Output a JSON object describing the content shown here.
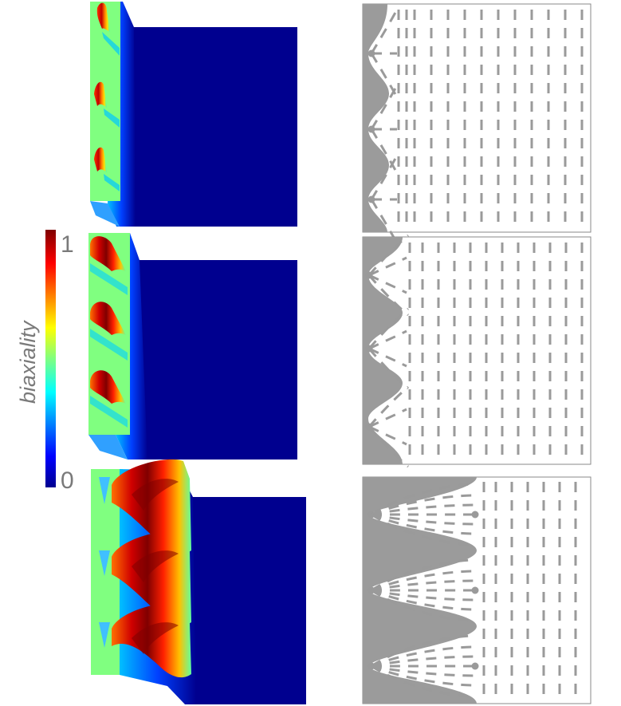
{
  "colorbar": {
    "label": "biaxiality",
    "max_label": "1",
    "min_label": "0",
    "colormap": "jet",
    "range": [
      0,
      1
    ]
  },
  "colors": {
    "low": "#00008f",
    "mid": "#80ff80",
    "high": "#800000",
    "substrate": "#9b9b9b",
    "director": "#9a9a9a",
    "frame": "#8a8a8a"
  },
  "rows": [
    {
      "id": "row-1",
      "surface_plot": "biaxiality-surface",
      "director_map": "director-field-shallow-grooves"
    },
    {
      "id": "row-2",
      "surface_plot": "biaxiality-surface",
      "director_map": "director-field-medium-grooves"
    },
    {
      "id": "row-3",
      "surface_plot": "biaxiality-surface",
      "director_map": "director-field-deep-grooves"
    }
  ]
}
